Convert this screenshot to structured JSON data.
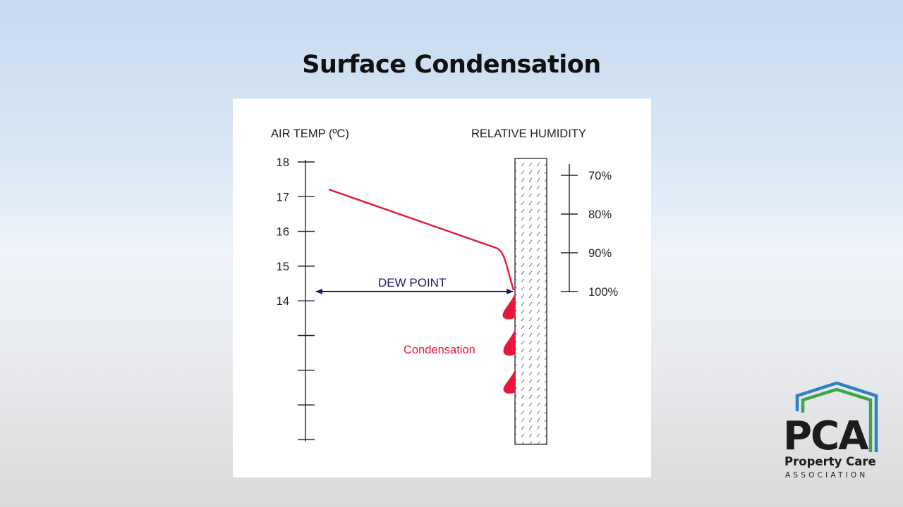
{
  "slide": {
    "title": "Surface Condensation"
  },
  "diagram": {
    "air_temp_label": "AIR TEMP (ºC)",
    "humidity_label": "RELATIVE HUMIDITY",
    "temp_ticks": [
      "18",
      "17",
      "16",
      "15",
      "14",
      "",
      "",
      "",
      ""
    ],
    "humidity_ticks": [
      "70%",
      "80%",
      "90%",
      "100%"
    ],
    "dew_point_label": "DEW POINT",
    "condensation_label": "Condensation",
    "colors": {
      "temperature_line": "#e8173a",
      "dew_point_arrow": "#1a1a6e",
      "condensation": "#e8173a",
      "axis": "#222222"
    }
  },
  "logo": {
    "initials": "PCA",
    "name": "Property Care",
    "subtitle": "ASSOCIATION",
    "colors": {
      "roof_outer": "#2f7fc4",
      "roof_inner": "#3aa64a",
      "text": "#1c1c1c"
    }
  }
}
